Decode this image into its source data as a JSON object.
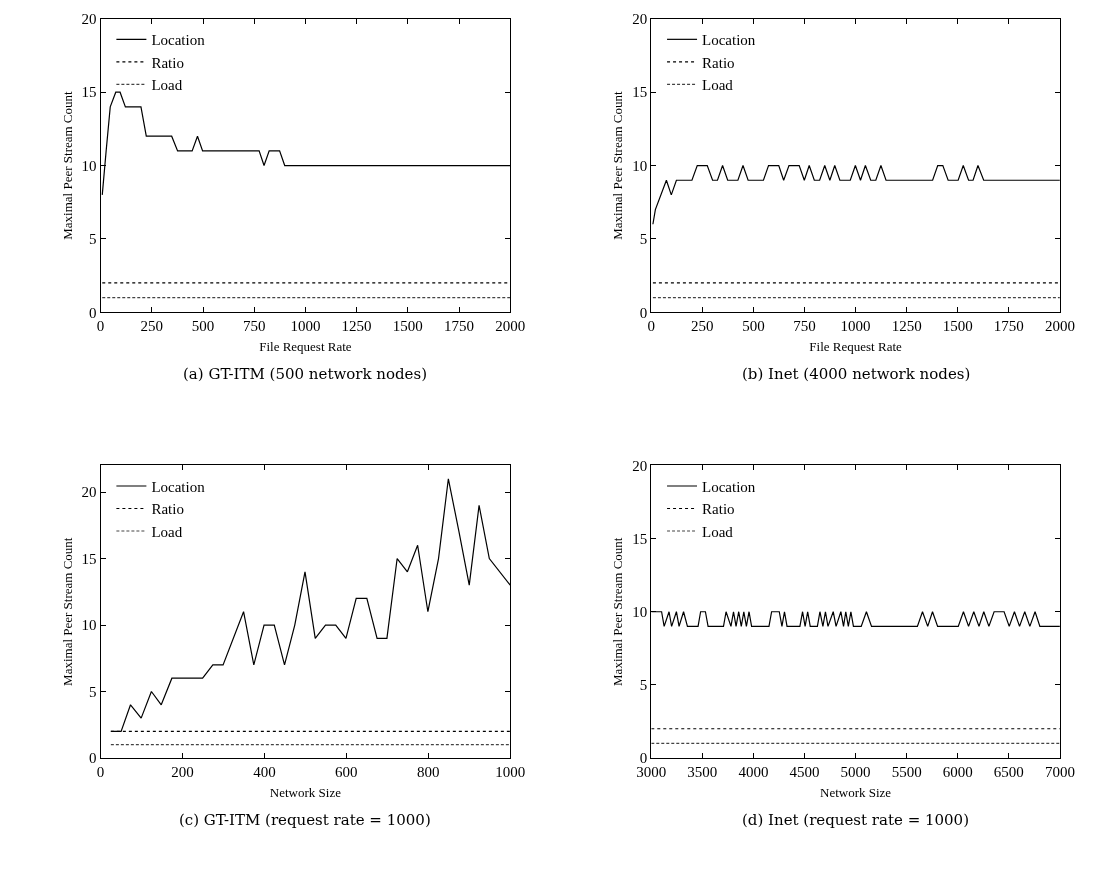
{
  "chart_data": [
    {
      "type": "line",
      "title": "(a) GT-ITM (500 network nodes)",
      "xlabel": "File Request Rate",
      "ylabel": "Maximal Peer Stream Count",
      "xlim": [
        0,
        2000
      ],
      "xticks": [
        0,
        250,
        500,
        750,
        1000,
        1250,
        1500,
        1750,
        2000
      ],
      "ylim": [
        0,
        20
      ],
      "yticks": [
        0,
        5,
        10,
        15,
        20
      ],
      "legend": "top left",
      "series": [
        {
          "name": "Location",
          "color": "#000000",
          "line_style": "solid",
          "x": [
            8,
            27,
            47,
            74,
            95,
            121,
            197,
            223,
            347,
            376,
            447,
            473,
            498,
            774,
            798,
            823,
            874,
            899,
            2000
          ],
          "values": [
            8,
            11,
            14,
            15,
            15,
            14,
            14,
            12,
            12,
            11,
            11,
            12,
            11,
            11,
            10,
            11,
            11,
            10,
            10
          ]
        },
        {
          "name": "Ratio",
          "color": "#000000",
          "line_style": "dotted",
          "x": [
            8,
            2000
          ],
          "values": [
            2,
            2
          ]
        },
        {
          "name": "Load",
          "color": "#444444",
          "line_style": "dashed",
          "x": [
            8,
            2000
          ],
          "values": [
            1,
            1
          ]
        }
      ]
    },
    {
      "type": "line",
      "title": "(b) Inet (4000 network nodes)",
      "xlabel": "File Request Rate",
      "ylabel": "Maximal Peer Stream Count",
      "xlim": [
        0,
        2000
      ],
      "xticks": [
        0,
        250,
        500,
        750,
        1000,
        1250,
        1500,
        1750,
        2000
      ],
      "ylim": [
        0,
        20
      ],
      "yticks": [
        0,
        5,
        10,
        15,
        20
      ],
      "legend": "top left",
      "series": [
        {
          "name": "Location",
          "color": "#000000",
          "line_style": "solid",
          "x": [
            8,
            20,
            74,
            98,
            123,
            199,
            225,
            274,
            300,
            324,
            349,
            374,
            424,
            449,
            474,
            549,
            574,
            624,
            648,
            674,
            724,
            749,
            773,
            798,
            824,
            849,
            874,
            898,
            923,
            974,
            999,
            1024,
            1048,
            1074,
            1099,
            1124,
            1149,
            1377,
            1402,
            1427,
            1453,
            1502,
            1527,
            1553,
            1575,
            1599,
            1627,
            2000
          ],
          "values": [
            6,
            7,
            9,
            8,
            9,
            9,
            10,
            10,
            9,
            9,
            10,
            9,
            9,
            10,
            9,
            9,
            10,
            10,
            9,
            10,
            10,
            9,
            10,
            9,
            9,
            10,
            9,
            10,
            9,
            9,
            10,
            9,
            10,
            9,
            9,
            10,
            9,
            9,
            10,
            10,
            9,
            9,
            10,
            9,
            9,
            10,
            9,
            9
          ]
        },
        {
          "name": "Ratio",
          "color": "#000000",
          "line_style": "dotted",
          "x": [
            8,
            2000
          ],
          "values": [
            2,
            2
          ]
        },
        {
          "name": "Load",
          "color": "#444444",
          "line_style": "dashed",
          "x": [
            8,
            2000
          ],
          "values": [
            1,
            1
          ]
        }
      ]
    },
    {
      "type": "line",
      "title": "(c) GT-ITM (request rate = 1000)",
      "xlabel": "Network Size",
      "ylabel": "Maximal Peer Stream Count",
      "xlim": [
        0,
        1000
      ],
      "xticks": [
        0,
        200,
        400,
        600,
        800,
        1000
      ],
      "ylim": [
        0,
        22
      ],
      "yticks": [
        0,
        5,
        10,
        15,
        20
      ],
      "legend": "top left",
      "series": [
        {
          "name": "Location",
          "color": "#000000",
          "line_style": "solid",
          "x": [
            25,
            50,
            73,
            99,
            124,
            148,
            174,
            249,
            274,
            299,
            349,
            374,
            399,
            424,
            449,
            474,
            499,
            524,
            549,
            574,
            599,
            624,
            650,
            675,
            699,
            724,
            749,
            774,
            799,
            825,
            849,
            875,
            900,
            924,
            949,
            1000
          ],
          "values": [
            2,
            2,
            4,
            3,
            5,
            4,
            6,
            6,
            7,
            7,
            11,
            7,
            10,
            10,
            7,
            10,
            14,
            9,
            10,
            10,
            9,
            12,
            12,
            9,
            9,
            15,
            14,
            16,
            11,
            15,
            21,
            17,
            13,
            19,
            15,
            13
          ]
        },
        {
          "name": "Ratio",
          "color": "#000000",
          "line_style": "dotted",
          "x": [
            25,
            1000
          ],
          "values": [
            2,
            2
          ]
        },
        {
          "name": "Load",
          "color": "#444444",
          "line_style": "dashed",
          "x": [
            25,
            1000
          ],
          "values": [
            1,
            1
          ]
        }
      ]
    },
    {
      "type": "line",
      "title": "(d) Inet (request rate = 1000)",
      "xlabel": "Network Size",
      "ylabel": "Maximal Peer Stream Count",
      "xlim": [
        3000,
        7000
      ],
      "xticks": [
        3000,
        3500,
        4000,
        4500,
        5000,
        5500,
        6000,
        6500,
        7000
      ],
      "ylim": [
        0,
        20
      ],
      "yticks": [
        0,
        5,
        10,
        15,
        20
      ],
      "legend": "top left",
      "series": [
        {
          "name": "Location",
          "color": "#000000",
          "line_style": "solid",
          "x": [
            3000,
            3101,
            3126,
            3174,
            3199,
            3246,
            3272,
            3316,
            3354,
            3458,
            3483,
            3530,
            3556,
            3707,
            3732,
            3780,
            3805,
            3830,
            3856,
            3881,
            3906,
            3931,
            3957,
            3982,
            4032,
            4152,
            4178,
            4253,
            4279,
            4304,
            4329,
            4455,
            4481,
            4506,
            4531,
            4556,
            4626,
            4651,
            4680,
            4705,
            4730,
            4781,
            4809,
            4856,
            4882,
            4904,
            4929,
            4954,
            4979,
            5055,
            5106,
            5156,
            5605,
            5655,
            5706,
            5753,
            5803,
            6005,
            6056,
            6106,
            6157,
            6208,
            6255,
            6305,
            6356,
            6454,
            6504,
            6555,
            6605,
            6656,
            6706,
            6757,
            6804,
            7000
          ],
          "values": [
            10,
            10,
            9,
            10,
            9,
            10,
            9,
            10,
            9,
            9,
            10,
            10,
            9,
            9,
            10,
            9,
            10,
            9,
            10,
            9,
            10,
            9,
            10,
            9,
            9,
            9,
            10,
            10,
            9,
            10,
            9,
            9,
            10,
            9,
            10,
            9,
            9,
            10,
            9,
            10,
            9,
            10,
            9,
            10,
            9,
            10,
            9,
            10,
            9,
            9,
            10,
            9,
            9,
            10,
            9,
            10,
            9,
            9,
            10,
            9,
            10,
            9,
            10,
            9,
            10,
            10,
            9,
            10,
            9,
            10,
            9,
            10,
            9,
            9
          ]
        },
        {
          "name": "Ratio",
          "color": "#000000",
          "line_style": "dotted",
          "x": [
            3000,
            7000
          ],
          "values": [
            2,
            2
          ]
        },
        {
          "name": "Load",
          "color": "#444444",
          "line_style": "dashed",
          "x": [
            3000,
            7000
          ],
          "values": [
            1,
            1
          ]
        }
      ]
    }
  ]
}
